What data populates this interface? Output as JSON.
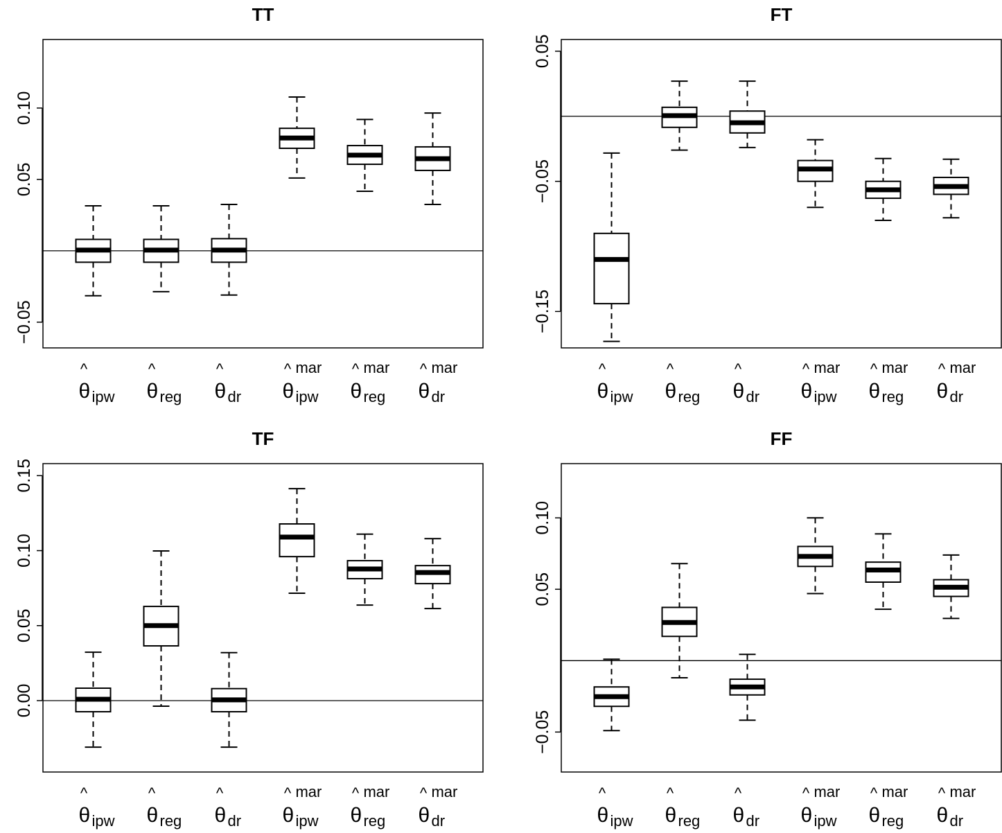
{
  "chart_data": [
    {
      "type": "boxplot",
      "title": "TT",
      "ylim": [
        -0.068,
        0.148
      ],
      "yticks": [
        -0.05,
        0.05,
        0.1
      ],
      "ytick_labels": [
        "−0.05",
        "0.05",
        "0.10"
      ],
      "reference_line": 0,
      "categories": [
        {
          "symbol": "θ",
          "hat": "^",
          "sub": "ipw",
          "sup": ""
        },
        {
          "symbol": "θ",
          "hat": "^",
          "sub": "reg",
          "sup": ""
        },
        {
          "symbol": "θ",
          "hat": "^",
          "sub": "dr",
          "sup": ""
        },
        {
          "symbol": "θ",
          "hat": "^",
          "sub": "ipw",
          "sup": "mar"
        },
        {
          "symbol": "θ",
          "hat": "^",
          "sub": "reg",
          "sup": "mar"
        },
        {
          "symbol": "θ",
          "hat": "^",
          "sub": "dr",
          "sup": "mar"
        }
      ],
      "boxes": [
        {
          "whisker_low": -0.0315,
          "q1": -0.008,
          "median": 0.0005,
          "q3": 0.008,
          "whisker_high": 0.0315
        },
        {
          "whisker_low": -0.0286,
          "q1": -0.008,
          "median": 0.0005,
          "q3": 0.008,
          "whisker_high": 0.0315
        },
        {
          "whisker_low": -0.031,
          "q1": -0.008,
          "median": 0.0005,
          "q3": 0.0085,
          "whisker_high": 0.0325
        },
        {
          "whisker_low": 0.051,
          "q1": 0.0718,
          "median": 0.079,
          "q3": 0.0858,
          "whisker_high": 0.1077
        },
        {
          "whisker_low": 0.0417,
          "q1": 0.0606,
          "median": 0.067,
          "q3": 0.0737,
          "whisker_high": 0.092
        },
        {
          "whisker_low": 0.0325,
          "q1": 0.0563,
          "median": 0.0645,
          "q3": 0.0728,
          "whisker_high": 0.0965
        }
      ]
    },
    {
      "type": "boxplot",
      "title": "FT",
      "ylim": [
        -0.178,
        0.059
      ],
      "yticks": [
        -0.15,
        -0.05,
        0.05
      ],
      "ytick_labels": [
        "−0.15",
        "−0.05",
        "0.05"
      ],
      "reference_line": 0,
      "categories": [
        {
          "symbol": "θ",
          "hat": "^",
          "sub": "ipw",
          "sup": ""
        },
        {
          "symbol": "θ",
          "hat": "^",
          "sub": "reg",
          "sup": ""
        },
        {
          "symbol": "θ",
          "hat": "^",
          "sub": "dr",
          "sup": ""
        },
        {
          "symbol": "θ",
          "hat": "^",
          "sub": "ipw",
          "sup": "mar"
        },
        {
          "symbol": "θ",
          "hat": "^",
          "sub": "reg",
          "sup": "mar"
        },
        {
          "symbol": "θ",
          "hat": "^",
          "sub": "dr",
          "sup": "mar"
        }
      ],
      "boxes": [
        {
          "whisker_low": -0.173,
          "q1": -0.144,
          "median": -0.11,
          "q3": -0.09,
          "whisker_high": -0.0283
        },
        {
          "whisker_low": -0.026,
          "q1": -0.0085,
          "median": 0.0005,
          "q3": 0.0069,
          "whisker_high": 0.027
        },
        {
          "whisker_low": -0.024,
          "q1": -0.0128,
          "median": -0.005,
          "q3": 0.004,
          "whisker_high": 0.027
        },
        {
          "whisker_low": -0.07,
          "q1": -0.05,
          "median": -0.0405,
          "q3": -0.034,
          "whisker_high": -0.018
        },
        {
          "whisker_low": -0.08,
          "q1": -0.063,
          "median": -0.0565,
          "q3": -0.05,
          "whisker_high": -0.0325
        },
        {
          "whisker_low": -0.078,
          "q1": -0.06,
          "median": -0.054,
          "q3": -0.047,
          "whisker_high": -0.033
        }
      ]
    },
    {
      "type": "boxplot",
      "title": "TF",
      "ylim": [
        -0.0476,
        0.158
      ],
      "yticks": [
        0.0,
        0.05,
        0.1,
        0.15
      ],
      "ytick_labels": [
        "0.00",
        "0.05",
        "0.10",
        "0.15"
      ],
      "reference_line": 0,
      "categories": [
        {
          "symbol": "θ",
          "hat": "^",
          "sub": "ipw",
          "sup": ""
        },
        {
          "symbol": "θ",
          "hat": "^",
          "sub": "reg",
          "sup": ""
        },
        {
          "symbol": "θ",
          "hat": "^",
          "sub": "dr",
          "sup": ""
        },
        {
          "symbol": "θ",
          "hat": "^",
          "sub": "ipw",
          "sup": "mar"
        },
        {
          "symbol": "θ",
          "hat": "^",
          "sub": "reg",
          "sup": "mar"
        },
        {
          "symbol": "θ",
          "hat": "^",
          "sub": "dr",
          "sup": "mar"
        }
      ],
      "boxes": [
        {
          "whisker_low": -0.031,
          "q1": -0.0074,
          "median": 0.0009,
          "q3": 0.0083,
          "whisker_high": 0.0323
        },
        {
          "whisker_low": -0.0037,
          "q1": 0.0365,
          "median": 0.05,
          "q3": 0.0628,
          "whisker_high": 0.0998
        },
        {
          "whisker_low": -0.031,
          "q1": -0.0074,
          "median": 0.0005,
          "q3": 0.008,
          "whisker_high": 0.032
        },
        {
          "whisker_low": 0.0716,
          "q1": 0.096,
          "median": 0.109,
          "q3": 0.1178,
          "whisker_high": 0.1413
        },
        {
          "whisker_low": 0.0637,
          "q1": 0.0813,
          "median": 0.0878,
          "q3": 0.0933,
          "whisker_high": 0.111
        },
        {
          "whisker_low": 0.0614,
          "q1": 0.078,
          "median": 0.0854,
          "q3": 0.09,
          "whisker_high": 0.108
        }
      ]
    },
    {
      "type": "boxplot",
      "title": "FF",
      "ylim": [
        -0.078,
        0.138
      ],
      "yticks": [
        -0.05,
        0.05,
        0.1
      ],
      "ytick_labels": [
        "−0.05",
        "0.05",
        "0.10"
      ],
      "reference_line": 0,
      "categories": [
        {
          "symbol": "θ",
          "hat": "^",
          "sub": "ipw",
          "sup": ""
        },
        {
          "symbol": "θ",
          "hat": "^",
          "sub": "reg",
          "sup": ""
        },
        {
          "symbol": "θ",
          "hat": "^",
          "sub": "dr",
          "sup": ""
        },
        {
          "symbol": "θ",
          "hat": "^",
          "sub": "ipw",
          "sup": "mar"
        },
        {
          "symbol": "θ",
          "hat": "^",
          "sub": "reg",
          "sup": "mar"
        },
        {
          "symbol": "θ",
          "hat": "^",
          "sub": "dr",
          "sup": "mar"
        }
      ],
      "boxes": [
        {
          "whisker_low": -0.049,
          "q1": -0.032,
          "median": -0.0252,
          "q3": -0.0184,
          "whisker_high": 0.001
        },
        {
          "whisker_low": -0.012,
          "q1": 0.017,
          "median": 0.0267,
          "q3": 0.0373,
          "whisker_high": 0.068
        },
        {
          "whisker_low": -0.0417,
          "q1": -0.024,
          "median": -0.0184,
          "q3": -0.013,
          "whisker_high": 0.0044
        },
        {
          "whisker_low": 0.047,
          "q1": 0.066,
          "median": 0.073,
          "q3": 0.08,
          "whisker_high": 0.1
        },
        {
          "whisker_low": 0.036,
          "q1": 0.055,
          "median": 0.0635,
          "q3": 0.069,
          "whisker_high": 0.0888
        },
        {
          "whisker_low": 0.0296,
          "q1": 0.045,
          "median": 0.0514,
          "q3": 0.0567,
          "whisker_high": 0.074
        }
      ]
    }
  ]
}
